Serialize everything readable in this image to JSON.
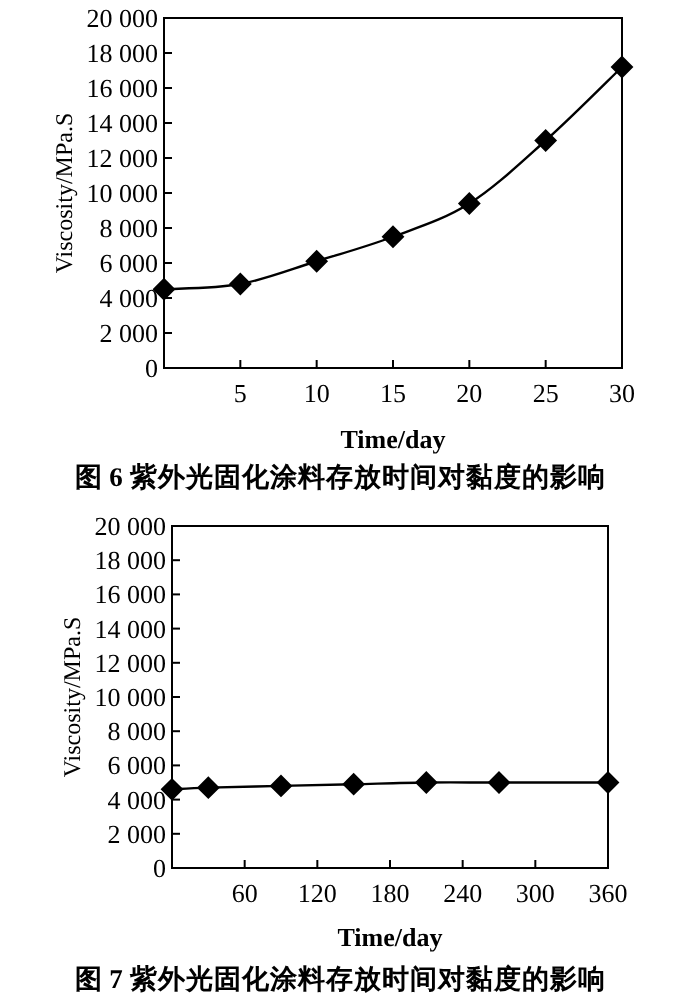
{
  "chart_data": [
    {
      "type": "line",
      "title": "图 6  紫外光固化涂料存放时间对黏度的影响",
      "xlabel": "Time/day",
      "ylabel": "Viscosity/MPa.S",
      "marker": "diamond",
      "line_style": "solid",
      "x": [
        0,
        5,
        10,
        15,
        20,
        25,
        30
      ],
      "series": [
        {
          "color": "#000000",
          "values": [
            4500,
            4800,
            6100,
            7500,
            9400,
            13000,
            17200
          ]
        }
      ],
      "xlim": [
        0,
        30
      ],
      "xticks": [
        5,
        10,
        15,
        20,
        25,
        30
      ],
      "ylim": [
        0,
        20000
      ],
      "yticks": [
        0,
        {
          "value": 2000,
          "label": "2 000"
        },
        {
          "value": 4000,
          "label": "4 000"
        },
        {
          "value": 6000,
          "label": "6 000"
        },
        {
          "value": 8000,
          "label": "8 000"
        },
        {
          "value": 10000,
          "label": "10 000"
        },
        {
          "value": 12000,
          "label": "12 000"
        },
        {
          "value": 14000,
          "label": "14 000"
        },
        {
          "value": 16000,
          "label": "16 000"
        },
        {
          "value": 18000,
          "label": "18 000"
        },
        {
          "value": 20000,
          "label": "20 000"
        }
      ]
    },
    {
      "type": "line",
      "title": "图 7  紫外光固化涂料存放时间对黏度的影响",
      "xlabel": "Time/day",
      "ylabel": "Viscosity/MPa.S",
      "marker": "diamond",
      "line_style": "solid",
      "x": [
        0,
        30,
        90,
        150,
        210,
        270,
        360
      ],
      "series": [
        {
          "color": "#000000",
          "values": [
            4600,
            4700,
            4800,
            4900,
            5000,
            5000,
            5000
          ]
        }
      ],
      "xlim": [
        0,
        360
      ],
      "xticks": [
        60,
        120,
        180,
        240,
        300,
        360
      ],
      "ylim": [
        0,
        20000
      ],
      "yticks": [
        0,
        {
          "value": 2000,
          "label": "2 000"
        },
        {
          "value": 4000,
          "label": "4 000"
        },
        {
          "value": 6000,
          "label": "6 000"
        },
        {
          "value": 8000,
          "label": "8 000"
        },
        {
          "value": 10000,
          "label": "10 000"
        },
        {
          "value": 12000,
          "label": "12 000"
        },
        {
          "value": 14000,
          "label": "14 000"
        },
        {
          "value": 16000,
          "label": "16 000"
        },
        {
          "value": 18000,
          "label": "18 000"
        },
        {
          "value": 20000,
          "label": "20 000"
        }
      ]
    }
  ]
}
